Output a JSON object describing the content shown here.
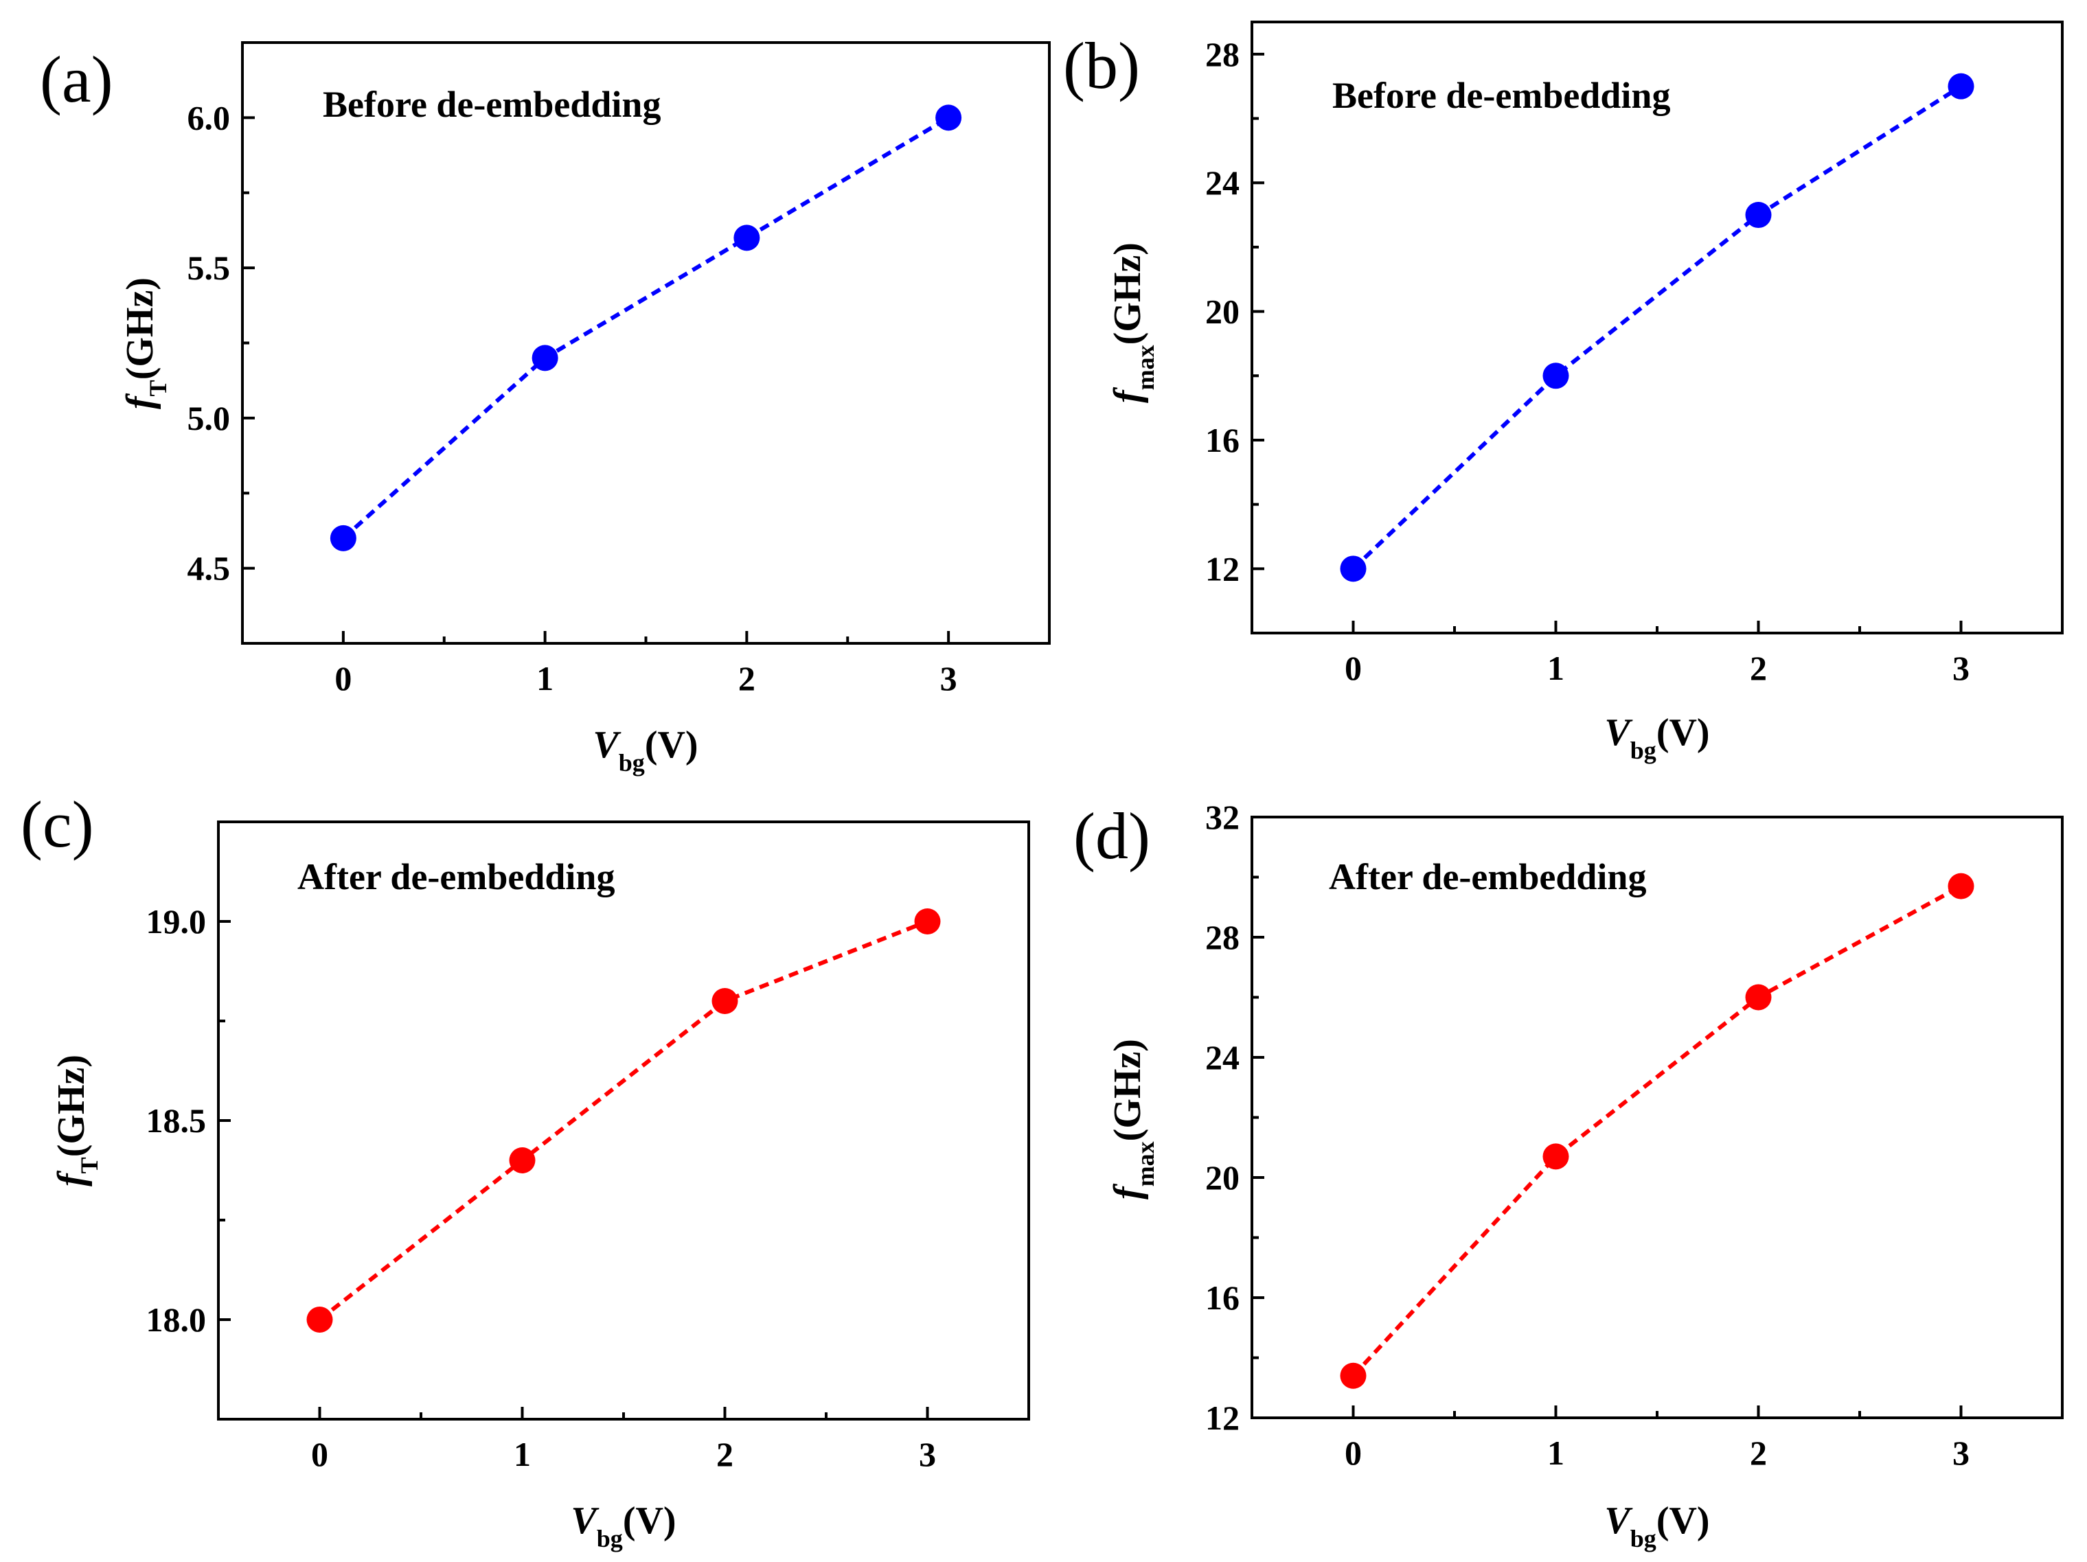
{
  "chart_data": [
    {
      "type": "line",
      "panel_label": "(a)",
      "annotation": "Before de-embedding",
      "xlabel": {
        "main": "V",
        "sub": "bg",
        "unit": "(V)"
      },
      "ylabel": {
        "main": "f",
        "sub": "T",
        "unit": "(GHz)"
      },
      "xlim": [
        -0.5,
        3.5
      ],
      "ylim": [
        4.25,
        6.25
      ],
      "xticks": [
        0,
        1,
        2,
        3
      ],
      "xtick_labels": [
        "0",
        "1",
        "2",
        "3"
      ],
      "yticks": [
        4.5,
        5.0,
        5.5,
        6.0
      ],
      "ytick_labels": [
        "4.5",
        "5.0",
        "5.5",
        "6.0"
      ],
      "series": [
        {
          "name": "fT before de-embedding",
          "color": "#0000ff",
          "x": [
            0,
            1,
            2,
            3
          ],
          "values": [
            4.6,
            5.2,
            5.6,
            6.0
          ]
        }
      ]
    },
    {
      "type": "line",
      "panel_label": "(b)",
      "annotation": "Before de-embedding",
      "xlabel": {
        "main": "V",
        "sub": "bg",
        "unit": "(V)"
      },
      "ylabel": {
        "main": "f",
        "sub": "max",
        "unit": "(GHz)"
      },
      "xlim": [
        -0.5,
        3.5
      ],
      "ylim": [
        10,
        29
      ],
      "xticks": [
        0,
        1,
        2,
        3
      ],
      "xtick_labels": [
        "0",
        "1",
        "2",
        "3"
      ],
      "yticks": [
        12,
        16,
        20,
        24,
        28
      ],
      "ytick_labels": [
        "12",
        "16",
        "20",
        "24",
        "28"
      ],
      "series": [
        {
          "name": "fmax before de-embedding",
          "color": "#0000ff",
          "x": [
            0,
            1,
            2,
            3
          ],
          "values": [
            12,
            18,
            23,
            27
          ]
        }
      ]
    },
    {
      "type": "line",
      "panel_label": "(c)",
      "annotation": "After de-embedding",
      "xlabel": {
        "main": "V",
        "sub": "bg",
        "unit": "(V)"
      },
      "ylabel": {
        "main": "f",
        "sub": "T",
        "unit": "(GHz)"
      },
      "xlim": [
        -0.5,
        3.5
      ],
      "ylim": [
        17.75,
        19.25
      ],
      "xticks": [
        0,
        1,
        2,
        3
      ],
      "xtick_labels": [
        "0",
        "1",
        "2",
        "3"
      ],
      "yticks": [
        18.0,
        18.5,
        19.0
      ],
      "ytick_labels": [
        "18.0",
        "18.5",
        "19.0"
      ],
      "series": [
        {
          "name": "fT after de-embedding",
          "color": "#ff0000",
          "x": [
            0,
            1,
            2,
            3
          ],
          "values": [
            18.0,
            18.4,
            18.8,
            19.0
          ]
        }
      ]
    },
    {
      "type": "line",
      "panel_label": "(d)",
      "annotation": "After de-embedding",
      "xlabel": {
        "main": "V",
        "sub": "bg",
        "unit": "(V)"
      },
      "ylabel": {
        "main": "f",
        "sub": "max",
        "unit": "(GHz)"
      },
      "xlim": [
        -0.5,
        3.5
      ],
      "ylim": [
        12,
        32
      ],
      "xticks": [
        0,
        1,
        2,
        3
      ],
      "xtick_labels": [
        "0",
        "1",
        "2",
        "3"
      ],
      "yticks": [
        12,
        16,
        20,
        24,
        28,
        32
      ],
      "ytick_labels": [
        "12",
        "16",
        "20",
        "24",
        "28",
        "32"
      ],
      "series": [
        {
          "name": "fmax after de-embedding",
          "color": "#ff0000",
          "x": [
            0,
            1,
            2,
            3
          ],
          "values": [
            13.4,
            20.7,
            26.0,
            29.7
          ]
        }
      ]
    }
  ]
}
